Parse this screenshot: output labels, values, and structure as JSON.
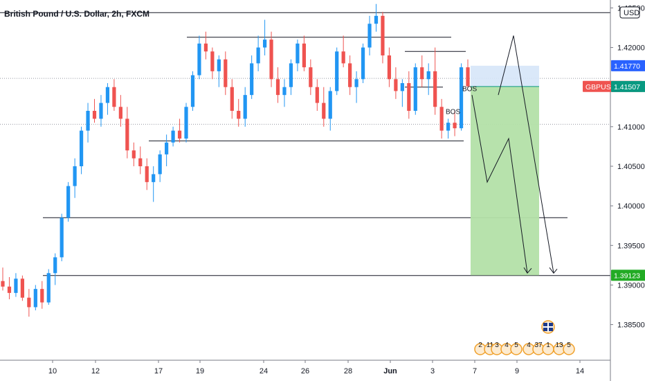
{
  "chart_data": {
    "type": "candlestick",
    "title": "British Pound / U.S. Dollar, 2h, FXCM",
    "currency": "USD",
    "y_axis": {
      "ticks": [
        "1.42500",
        "1.42000",
        "1.41500",
        "1.41000",
        "1.40500",
        "1.40000",
        "1.39500",
        "1.39000",
        "1.38500"
      ],
      "tick_values": [
        1.425,
        1.42,
        1.415,
        1.41,
        1.405,
        1.4,
        1.395,
        1.39,
        1.385
      ],
      "range": [
        1.3805,
        1.426
      ]
    },
    "x_axis": {
      "ticks": [
        "10",
        "12",
        "17",
        "19",
        "24",
        "26",
        "28",
        "Jun",
        "3",
        "7",
        "9",
        "14"
      ]
    },
    "price_tags": [
      {
        "label": "1.41770",
        "value": 1.4177,
        "color": "#2962ff"
      },
      {
        "label": "GBPUSD · 1.41508",
        "value": 1.41508,
        "color": "#ef5350"
      },
      {
        "label": "1.41507",
        "value": 1.41507,
        "color": "#089981"
      },
      {
        "label": "1.39123",
        "value": 1.39123,
        "color": "#22ab24"
      }
    ],
    "annotations": [
      "BOS",
      "BOS"
    ],
    "events": [
      "2",
      "11",
      "3",
      "4",
      "5",
      "4",
      "37",
      "1",
      "13",
      "5"
    ],
    "horizontal_levels": [
      1.4244,
      1.4213,
      1.4195,
      1.4161,
      1.415,
      1.4103,
      1.4082,
      1.3985,
      1.3912
    ],
    "trade": {
      "entry": 1.41507,
      "stop": 1.4177,
      "target": 1.39123
    },
    "candles": [
      {
        "i": 0,
        "o": 1.3905,
        "h": 1.3922,
        "l": 1.3893,
        "c": 1.3898
      },
      {
        "i": 1,
        "o": 1.3898,
        "h": 1.391,
        "l": 1.3882,
        "c": 1.389
      },
      {
        "i": 2,
        "o": 1.389,
        "h": 1.3915,
        "l": 1.3885,
        "c": 1.3908
      },
      {
        "i": 3,
        "o": 1.3908,
        "h": 1.3912,
        "l": 1.388,
        "c": 1.3884
      },
      {
        "i": 4,
        "o": 1.3884,
        "h": 1.3895,
        "l": 1.386,
        "c": 1.3872
      },
      {
        "i": 5,
        "o": 1.3872,
        "h": 1.39,
        "l": 1.3868,
        "c": 1.3895
      },
      {
        "i": 6,
        "o": 1.3895,
        "h": 1.3905,
        "l": 1.387,
        "c": 1.3878
      },
      {
        "i": 7,
        "o": 1.3878,
        "h": 1.392,
        "l": 1.3875,
        "c": 1.3915
      },
      {
        "i": 8,
        "o": 1.3915,
        "h": 1.394,
        "l": 1.39,
        "c": 1.3935
      },
      {
        "i": 9,
        "o": 1.3935,
        "h": 1.399,
        "l": 1.393,
        "c": 1.3985
      },
      {
        "i": 10,
        "o": 1.3985,
        "h": 1.403,
        "l": 1.398,
        "c": 1.4025
      },
      {
        "i": 11,
        "o": 1.4025,
        "h": 1.406,
        "l": 1.401,
        "c": 1.405
      },
      {
        "i": 12,
        "o": 1.405,
        "h": 1.41,
        "l": 1.404,
        "c": 1.4095
      },
      {
        "i": 13,
        "o": 1.4095,
        "h": 1.413,
        "l": 1.408,
        "c": 1.412
      },
      {
        "i": 14,
        "o": 1.412,
        "h": 1.4135,
        "l": 1.4105,
        "c": 1.411
      },
      {
        "i": 15,
        "o": 1.411,
        "h": 1.414,
        "l": 1.41,
        "c": 1.413
      },
      {
        "i": 16,
        "o": 1.413,
        "h": 1.4155,
        "l": 1.4115,
        "c": 1.415
      },
      {
        "i": 17,
        "o": 1.415,
        "h": 1.416,
        "l": 1.412,
        "c": 1.4125
      },
      {
        "i": 18,
        "o": 1.4125,
        "h": 1.414,
        "l": 1.41,
        "c": 1.411
      },
      {
        "i": 19,
        "o": 1.411,
        "h": 1.4125,
        "l": 1.406,
        "c": 1.407
      },
      {
        "i": 20,
        "o": 1.407,
        "h": 1.408,
        "l": 1.405,
        "c": 1.406
      },
      {
        "i": 21,
        "o": 1.406,
        "h": 1.4075,
        "l": 1.404,
        "c": 1.405
      },
      {
        "i": 22,
        "o": 1.405,
        "h": 1.406,
        "l": 1.402,
        "c": 1.403
      },
      {
        "i": 23,
        "o": 1.403,
        "h": 1.405,
        "l": 1.4005,
        "c": 1.404
      },
      {
        "i": 24,
        "o": 1.404,
        "h": 1.407,
        "l": 1.403,
        "c": 1.4065
      },
      {
        "i": 25,
        "o": 1.4065,
        "h": 1.409,
        "l": 1.405,
        "c": 1.408
      },
      {
        "i": 26,
        "o": 1.408,
        "h": 1.41,
        "l": 1.4075,
        "c": 1.4095
      },
      {
        "i": 27,
        "o": 1.4095,
        "h": 1.411,
        "l": 1.408,
        "c": 1.4085
      },
      {
        "i": 28,
        "o": 1.4085,
        "h": 1.413,
        "l": 1.408,
        "c": 1.4125
      },
      {
        "i": 29,
        "o": 1.4125,
        "h": 1.417,
        "l": 1.412,
        "c": 1.4165
      },
      {
        "i": 30,
        "o": 1.4165,
        "h": 1.4215,
        "l": 1.416,
        "c": 1.4205
      },
      {
        "i": 31,
        "o": 1.4205,
        "h": 1.422,
        "l": 1.4185,
        "c": 1.4195
      },
      {
        "i": 32,
        "o": 1.4195,
        "h": 1.42,
        "l": 1.416,
        "c": 1.417
      },
      {
        "i": 33,
        "o": 1.417,
        "h": 1.419,
        "l": 1.415,
        "c": 1.4185
      },
      {
        "i": 34,
        "o": 1.4185,
        "h": 1.4195,
        "l": 1.414,
        "c": 1.415
      },
      {
        "i": 35,
        "o": 1.415,
        "h": 1.416,
        "l": 1.411,
        "c": 1.412
      },
      {
        "i": 36,
        "o": 1.412,
        "h": 1.4135,
        "l": 1.41,
        "c": 1.411
      },
      {
        "i": 37,
        "o": 1.411,
        "h": 1.415,
        "l": 1.41,
        "c": 1.414
      },
      {
        "i": 38,
        "o": 1.414,
        "h": 1.419,
        "l": 1.4135,
        "c": 1.418
      },
      {
        "i": 39,
        "o": 1.418,
        "h": 1.4215,
        "l": 1.417,
        "c": 1.42
      },
      {
        "i": 40,
        "o": 1.42,
        "h": 1.4235,
        "l": 1.419,
        "c": 1.421
      },
      {
        "i": 41,
        "o": 1.421,
        "h": 1.422,
        "l": 1.415,
        "c": 1.416
      },
      {
        "i": 42,
        "o": 1.416,
        "h": 1.4175,
        "l": 1.413,
        "c": 1.414
      },
      {
        "i": 43,
        "o": 1.414,
        "h": 1.416,
        "l": 1.4125,
        "c": 1.415
      },
      {
        "i": 44,
        "o": 1.415,
        "h": 1.4185,
        "l": 1.414,
        "c": 1.418
      },
      {
        "i": 45,
        "o": 1.418,
        "h": 1.421,
        "l": 1.417,
        "c": 1.4205
      },
      {
        "i": 46,
        "o": 1.4205,
        "h": 1.4215,
        "l": 1.417,
        "c": 1.4175
      },
      {
        "i": 47,
        "o": 1.4175,
        "h": 1.4185,
        "l": 1.414,
        "c": 1.415
      },
      {
        "i": 48,
        "o": 1.415,
        "h": 1.416,
        "l": 1.412,
        "c": 1.413
      },
      {
        "i": 49,
        "o": 1.413,
        "h": 1.415,
        "l": 1.41,
        "c": 1.411
      },
      {
        "i": 50,
        "o": 1.411,
        "h": 1.415,
        "l": 1.4095,
        "c": 1.4145
      },
      {
        "i": 51,
        "o": 1.4145,
        "h": 1.42,
        "l": 1.414,
        "c": 1.4195
      },
      {
        "i": 52,
        "o": 1.4195,
        "h": 1.4215,
        "l": 1.4175,
        "c": 1.418
      },
      {
        "i": 53,
        "o": 1.418,
        "h": 1.419,
        "l": 1.414,
        "c": 1.415
      },
      {
        "i": 54,
        "o": 1.415,
        "h": 1.417,
        "l": 1.413,
        "c": 1.416
      },
      {
        "i": 55,
        "o": 1.416,
        "h": 1.4205,
        "l": 1.4155,
        "c": 1.42
      },
      {
        "i": 56,
        "o": 1.42,
        "h": 1.424,
        "l": 1.419,
        "c": 1.423
      },
      {
        "i": 57,
        "o": 1.423,
        "h": 1.4255,
        "l": 1.422,
        "c": 1.424
      },
      {
        "i": 58,
        "o": 1.424,
        "h": 1.4245,
        "l": 1.418,
        "c": 1.419
      },
      {
        "i": 59,
        "o": 1.419,
        "h": 1.42,
        "l": 1.415,
        "c": 1.416
      },
      {
        "i": 60,
        "o": 1.416,
        "h": 1.4175,
        "l": 1.4135,
        "c": 1.4145
      },
      {
        "i": 61,
        "o": 1.4145,
        "h": 1.416,
        "l": 1.4125,
        "c": 1.4155
      },
      {
        "i": 62,
        "o": 1.4155,
        "h": 1.417,
        "l": 1.411,
        "c": 1.412
      },
      {
        "i": 63,
        "o": 1.412,
        "h": 1.418,
        "l": 1.4115,
        "c": 1.4175
      },
      {
        "i": 64,
        "o": 1.4175,
        "h": 1.419,
        "l": 1.415,
        "c": 1.416
      },
      {
        "i": 65,
        "o": 1.416,
        "h": 1.418,
        "l": 1.414,
        "c": 1.417
      },
      {
        "i": 66,
        "o": 1.417,
        "h": 1.42,
        "l": 1.4115,
        "c": 1.4125
      },
      {
        "i": 67,
        "o": 1.4125,
        "h": 1.4135,
        "l": 1.4085,
        "c": 1.4095
      },
      {
        "i": 68,
        "o": 1.4095,
        "h": 1.411,
        "l": 1.4085,
        "c": 1.4105
      },
      {
        "i": 69,
        "o": 1.4105,
        "h": 1.412,
        "l": 1.4088,
        "c": 1.4098
      },
      {
        "i": 70,
        "o": 1.4098,
        "h": 1.418,
        "l": 1.4095,
        "c": 1.4175
      },
      {
        "i": 71,
        "o": 1.4175,
        "h": 1.4185,
        "l": 1.415,
        "c": 1.4151
      }
    ]
  }
}
